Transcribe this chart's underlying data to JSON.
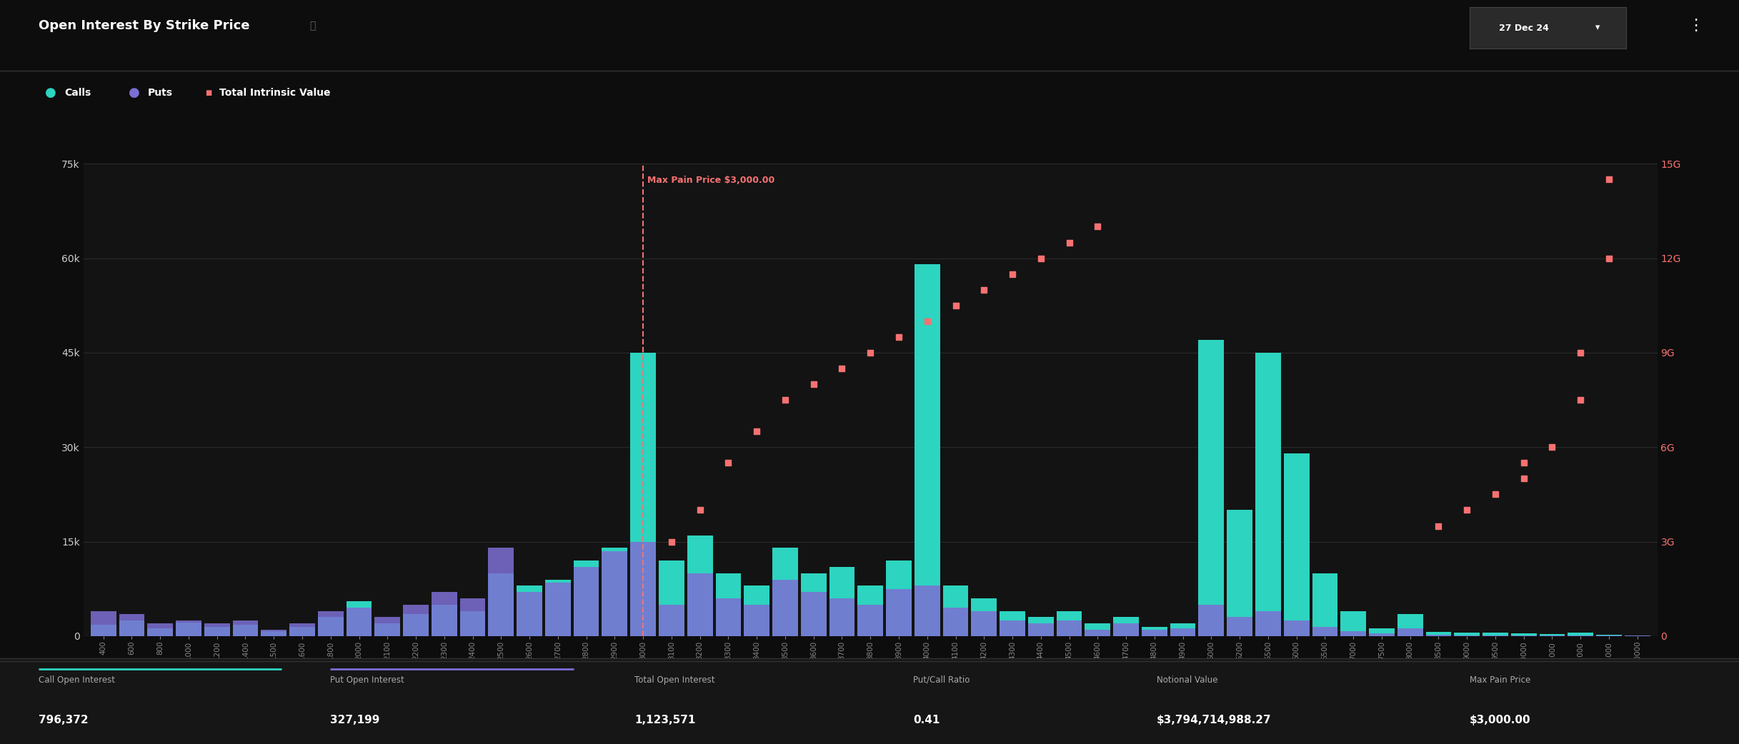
{
  "title": "Open Interest By Strike Price",
  "date_label": "27 Dec 24",
  "bg_color": "#0d0d0d",
  "plot_bg_color": "#131313",
  "calls_color": "#2dd4bf",
  "puts_color": "#7c6fd4",
  "tiv_color": "#f87171",
  "max_pain_color": "#f87171",
  "max_pain_price": 3000,
  "grid_color": "#2a2a2a",
  "text_color": "#ffffff",
  "ytick_color": "#cccccc",
  "xtick_color": "#888888",
  "footer_bg": "#131313",
  "stats": {
    "call_oi": "796,372",
    "put_oi": "327,199",
    "total_oi": "1,123,571",
    "put_call_ratio": "0.41",
    "notional_value": "$3,794,714,988.27",
    "max_pain": "$3,000.00"
  },
  "strikes": [
    400,
    600,
    800,
    1000,
    1200,
    1400,
    1500,
    1600,
    1800,
    2000,
    2100,
    2200,
    2300,
    2400,
    2500,
    2600,
    2700,
    2800,
    2900,
    3000,
    3100,
    3200,
    3300,
    3400,
    3500,
    3600,
    3700,
    3800,
    3900,
    4000,
    4100,
    4200,
    4300,
    4400,
    4500,
    4600,
    4700,
    4800,
    4900,
    5000,
    5200,
    5500,
    6000,
    6500,
    7000,
    7500,
    8000,
    8500,
    9000,
    9500,
    10000,
    11000,
    12000,
    15000,
    20000
  ],
  "calls": [
    1800,
    2500,
    1200,
    2200,
    1500,
    1800,
    800,
    1500,
    3000,
    5500,
    2000,
    3500,
    5000,
    4000,
    10000,
    8000,
    9000,
    12000,
    14000,
    45000,
    12000,
    16000,
    10000,
    8000,
    14000,
    10000,
    11000,
    8000,
    12000,
    59000,
    8000,
    6000,
    4000,
    3000,
    4000,
    2000,
    3000,
    1500,
    2000,
    47000,
    20000,
    45000,
    29000,
    10000,
    4000,
    1200,
    3500,
    700,
    600,
    500,
    400,
    300,
    500,
    200,
    100
  ],
  "puts": [
    4000,
    3500,
    2000,
    2500,
    2000,
    2500,
    1000,
    2000,
    4000,
    4500,
    3000,
    5000,
    7000,
    6000,
    14000,
    7000,
    8500,
    11000,
    13500,
    15000,
    5000,
    10000,
    6000,
    5000,
    9000,
    7000,
    6000,
    5000,
    7500,
    8000,
    4500,
    4000,
    2500,
    2000,
    2500,
    1000,
    2000,
    1000,
    1200,
    5000,
    3000,
    4000,
    2500,
    1500,
    800,
    400,
    1200,
    200,
    150,
    100,
    100,
    50,
    100,
    50,
    50
  ],
  "tiv_values": [
    3000000000,
    4000000000,
    5500000000,
    6500000000,
    7500000000,
    8000000000,
    8500000000,
    9000000000,
    9500000000,
    10000000000,
    10500000000,
    11000000000,
    11500000000,
    12000000000,
    12500000000,
    13000000000,
    3500000000,
    4000000000,
    4500000000,
    5000000000,
    5500000000,
    6000000000,
    7500000000,
    9000000000,
    12000000000,
    14500000000
  ],
  "tiv_strikes": [
    3100,
    3200,
    3300,
    3400,
    3500,
    3600,
    3700,
    3800,
    3900,
    4000,
    4100,
    4200,
    4300,
    4400,
    4500,
    4600,
    8500,
    9000,
    9500,
    10000,
    10500,
    11000,
    12000,
    13000,
    14000,
    15000
  ],
  "ylim_left": [
    0,
    75000
  ],
  "ylim_right": [
    0,
    15000000000
  ],
  "yticks_left": [
    0,
    15000,
    30000,
    45000,
    60000,
    75000
  ],
  "ytick_labels_left": [
    "0",
    "15k",
    "30k",
    "45k",
    "60k",
    "75k"
  ],
  "yticks_right": [
    0,
    3000000000,
    6000000000,
    9000000000,
    12000000000,
    15000000000
  ],
  "ytick_labels_right": [
    "0",
    "3G",
    "6G",
    "9G",
    "12G",
    "15G"
  ]
}
